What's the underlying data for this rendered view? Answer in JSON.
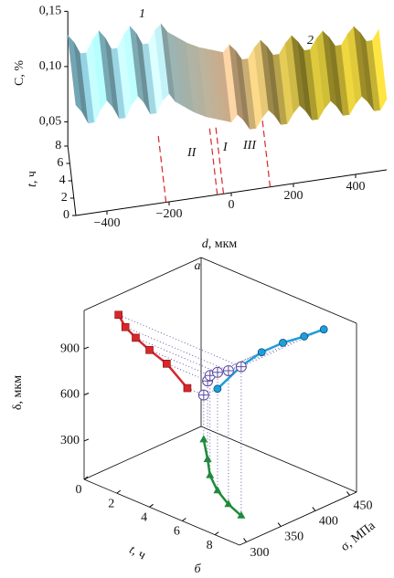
{
  "chart_data": [
    {
      "type": "surface3d",
      "caption": "а",
      "annotations": [
        "1",
        "2",
        "I",
        "II",
        "III"
      ],
      "xlabel": {
        "symbol": "d",
        "unit": ", мкм"
      },
      "ylabel": {
        "symbol": "t",
        "unit": ", ч"
      },
      "zlabel": "C, %",
      "d": [
        -500,
        -480,
        -460,
        -440,
        -420,
        -400,
        -380,
        -360,
        -340,
        -320,
        -300,
        -280,
        -260,
        -240,
        -220,
        -200,
        -180,
        -160,
        -140,
        -120,
        -100,
        -80,
        -60,
        -40,
        -20,
        0,
        20,
        40,
        60,
        80,
        100,
        120,
        140,
        160,
        180,
        200,
        220,
        240,
        260,
        280,
        300,
        320,
        340,
        360,
        380,
        400,
        420,
        440,
        460,
        480,
        500
      ],
      "C": [
        0.128,
        0.121,
        0.11,
        0.11,
        0.121,
        0.128,
        0.121,
        0.11,
        0.11,
        0.121,
        0.128,
        0.121,
        0.11,
        0.11,
        0.121,
        0.126,
        0.118,
        0.114,
        0.11,
        0.106,
        0.103,
        0.1,
        0.098,
        0.096,
        0.094,
        0.092,
        0.098,
        0.092,
        0.083,
        0.083,
        0.092,
        0.098,
        0.092,
        0.083,
        0.083,
        0.092,
        0.098,
        0.092,
        0.083,
        0.083,
        0.092,
        0.098,
        0.092,
        0.083,
        0.083,
        0.092,
        0.098,
        0.092,
        0.083,
        0.083,
        0.092
      ],
      "dlim": [
        -500,
        500
      ],
      "tlim": [
        0,
        8
      ],
      "Clim": [
        0.028,
        0.15
      ],
      "dticks": [
        {
          "value": -400,
          "label": "−400"
        },
        {
          "value": -200,
          "label": "−200"
        },
        0,
        200,
        400
      ],
      "tticks": [
        0,
        2,
        4,
        6,
        8
      ],
      "Cticks": [
        {
          "value": 0.05,
          "label": "0,05"
        },
        {
          "value": 0.1,
          "label": "0,10"
        },
        {
          "value": 0.15,
          "label": "0,15"
        }
      ],
      "boundaries": [
        -210,
        -45,
        -25,
        125
      ],
      "boundary_color": "#d8262b",
      "surface_colors": [
        "#92d2e4",
        "#a2d8e4",
        "#d9b690",
        "#a99a2e",
        "#c8b434"
      ]
    },
    {
      "type": "scatter3d",
      "caption": "б",
      "t": [
        1,
        2.5,
        3.7,
        5,
        6.3,
        7.5
      ],
      "sigma": [
        440,
        410,
        385,
        365,
        350,
        340
      ],
      "delta": [
        340,
        560,
        700,
        820,
        920,
        1020
      ],
      "tlim": [
        0,
        9.5
      ],
      "sigmalim": [
        290,
        460
      ],
      "deltalim": [
        50,
        1150
      ],
      "tticks": [
        0,
        2,
        4,
        6,
        8
      ],
      "sigmaticks": [
        300,
        350,
        400,
        450
      ],
      "deltaticks": [
        300,
        600,
        900
      ],
      "tlabel": {
        "symbol": "t",
        "unit": ", ч"
      },
      "sigmalabel": "σ, МПа",
      "deltalabel": "δ, мкм",
      "colors": {
        "sigma_delta": "#d8262b",
        "t_delta": "#1d9fdb",
        "t_sigma": "#1f8a3c",
        "points": "#5b4aa0"
      }
    }
  ]
}
